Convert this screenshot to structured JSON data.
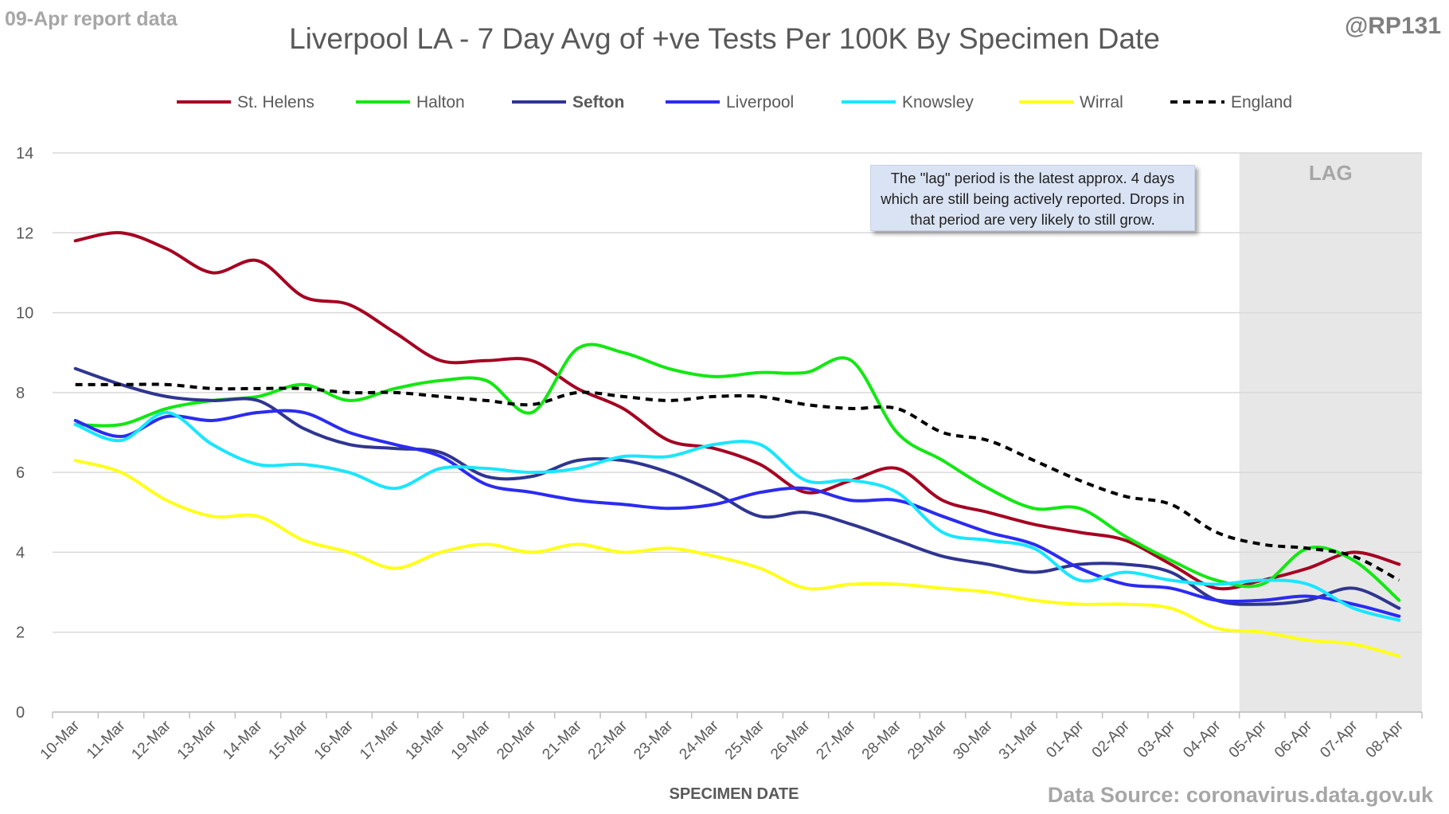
{
  "header": {
    "report_label": "09-Apr report data",
    "handle": "@RP131",
    "title": "Liverpool LA - 7 Day Avg of +ve Tests Per 100K By Specimen Date",
    "source": "Data Source: coronavirus.data.gov.uk"
  },
  "annotations": {
    "lag_label": "LAG",
    "note": "The \"lag\" period is the latest approx. 4 days which are still being actively reported. Drops in that period are very likely to still grow."
  },
  "colors": {
    "grid": "#d9d9d9",
    "lag_shade": "#e7e7e7",
    "axis_text": "#595959"
  },
  "chart_data": {
    "type": "line",
    "xlabel": "SPECIMEN DATE",
    "ylabel": "",
    "ylim": [
      0,
      14
    ],
    "yticks": [
      0,
      2,
      4,
      6,
      8,
      10,
      12,
      14
    ],
    "grid": true,
    "legend_position": "top",
    "lag_shaded_from": "04-Apr",
    "categories": [
      "10-Mar",
      "11-Mar",
      "12-Mar",
      "13-Mar",
      "14-Mar",
      "15-Mar",
      "16-Mar",
      "17-Mar",
      "18-Mar",
      "19-Mar",
      "20-Mar",
      "21-Mar",
      "22-Mar",
      "23-Mar",
      "24-Mar",
      "25-Mar",
      "26-Mar",
      "27-Mar",
      "28-Mar",
      "29-Mar",
      "30-Mar",
      "31-Mar",
      "01-Apr",
      "02-Apr",
      "03-Apr",
      "04-Apr",
      "05-Apr",
      "06-Apr",
      "07-Apr",
      "08-Apr"
    ],
    "series": [
      {
        "name": "St. Helens",
        "color": "#a50021",
        "dash": false,
        "bold": false,
        "values": [
          11.8,
          12.0,
          11.6,
          11.0,
          11.3,
          10.4,
          10.2,
          9.5,
          8.8,
          8.8,
          8.8,
          8.1,
          7.6,
          6.8,
          6.6,
          6.2,
          5.5,
          5.8,
          6.1,
          5.3,
          5.0,
          4.7,
          4.5,
          4.3,
          3.7,
          3.1,
          3.3,
          3.6,
          4.0,
          3.7
        ]
      },
      {
        "name": "Halton",
        "color": "#12e812",
        "dash": false,
        "bold": false,
        "values": [
          7.2,
          7.2,
          7.6,
          7.8,
          7.9,
          8.2,
          7.8,
          8.1,
          8.3,
          8.3,
          7.5,
          9.1,
          9.0,
          8.6,
          8.4,
          8.5,
          8.5,
          8.8,
          7.0,
          6.3,
          5.6,
          5.1,
          5.1,
          4.4,
          3.8,
          3.3,
          3.2,
          4.1,
          3.8,
          2.8
        ]
      },
      {
        "name": "Sefton",
        "color": "#2f3590",
        "dash": false,
        "bold": true,
        "values": [
          8.6,
          8.2,
          7.9,
          7.8,
          7.8,
          7.1,
          6.7,
          6.6,
          6.5,
          5.9,
          5.9,
          6.3,
          6.3,
          6.0,
          5.5,
          4.9,
          5.0,
          4.7,
          4.3,
          3.9,
          3.7,
          3.5,
          3.7,
          3.7,
          3.5,
          2.8,
          2.7,
          2.8,
          3.1,
          2.6
        ]
      },
      {
        "name": "Liverpool",
        "color": "#2b2bf2",
        "dash": false,
        "bold": false,
        "values": [
          7.3,
          6.9,
          7.4,
          7.3,
          7.5,
          7.5,
          7.0,
          6.7,
          6.4,
          5.7,
          5.5,
          5.3,
          5.2,
          5.1,
          5.2,
          5.5,
          5.6,
          5.3,
          5.3,
          4.9,
          4.5,
          4.2,
          3.6,
          3.2,
          3.1,
          2.8,
          2.8,
          2.9,
          2.7,
          2.4
        ]
      },
      {
        "name": "Knowsley",
        "color": "#19e6ff",
        "dash": false,
        "bold": false,
        "values": [
          7.2,
          6.8,
          7.5,
          6.7,
          6.2,
          6.2,
          6.0,
          5.6,
          6.1,
          6.1,
          6.0,
          6.1,
          6.4,
          6.4,
          6.7,
          6.7,
          5.8,
          5.8,
          5.5,
          4.5,
          4.3,
          4.1,
          3.3,
          3.5,
          3.3,
          3.2,
          3.3,
          3.2,
          2.6,
          2.3
        ]
      },
      {
        "name": "Wirral",
        "color": "#ffff1a",
        "dash": false,
        "bold": false,
        "values": [
          6.3,
          6.0,
          5.3,
          4.9,
          4.9,
          4.3,
          4.0,
          3.6,
          4.0,
          4.2,
          4.0,
          4.2,
          4.0,
          4.1,
          3.9,
          3.6,
          3.1,
          3.2,
          3.2,
          3.1,
          3.0,
          2.8,
          2.7,
          2.7,
          2.6,
          2.1,
          2.0,
          1.8,
          1.7,
          1.4
        ]
      },
      {
        "name": "England",
        "color": "#000000",
        "dash": true,
        "bold": false,
        "values": [
          8.2,
          8.2,
          8.2,
          8.1,
          8.1,
          8.1,
          8.0,
          8.0,
          7.9,
          7.8,
          7.7,
          8.0,
          7.9,
          7.8,
          7.9,
          7.9,
          7.7,
          7.6,
          7.6,
          7.0,
          6.8,
          6.3,
          5.8,
          5.4,
          5.2,
          4.5,
          4.2,
          4.1,
          3.9,
          3.3
        ]
      }
    ]
  }
}
